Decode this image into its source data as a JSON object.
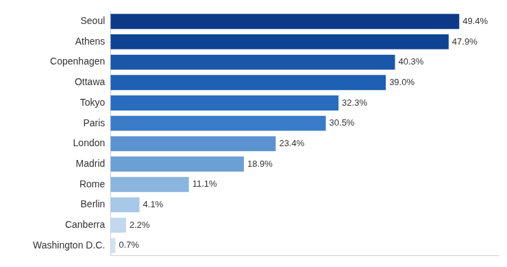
{
  "chart_data": {
    "type": "bar",
    "orientation": "horizontal",
    "categories": [
      "Seoul",
      "Athens",
      "Copenhagen",
      "Ottawa",
      "Tokyo",
      "Paris",
      "London",
      "Madrid",
      "Rome",
      "Berlin",
      "Canberra",
      "Washington D.C."
    ],
    "values": [
      49.4,
      47.9,
      40.3,
      39.0,
      32.3,
      30.5,
      23.4,
      18.9,
      11.1,
      4.1,
      2.2,
      0.7
    ],
    "value_labels": [
      "49.4%",
      "47.9%",
      "40.3%",
      "39.0%",
      "32.3%",
      "30.5%",
      "23.4%",
      "18.9%",
      "11.1%",
      "4.1%",
      "2.2%",
      "0.7%"
    ],
    "colors": [
      "#0d3a88",
      "#0f4494",
      "#1a57a8",
      "#1e60b3",
      "#2a6dbe",
      "#3a7cc7",
      "#5a93cf",
      "#6ba0d5",
      "#8ab5df",
      "#a8c8e9",
      "#c2d8ef",
      "#d2e2f3"
    ],
    "xlim": [
      0,
      55
    ],
    "grid": false,
    "data_labels": true,
    "tick_labels": "y"
  }
}
